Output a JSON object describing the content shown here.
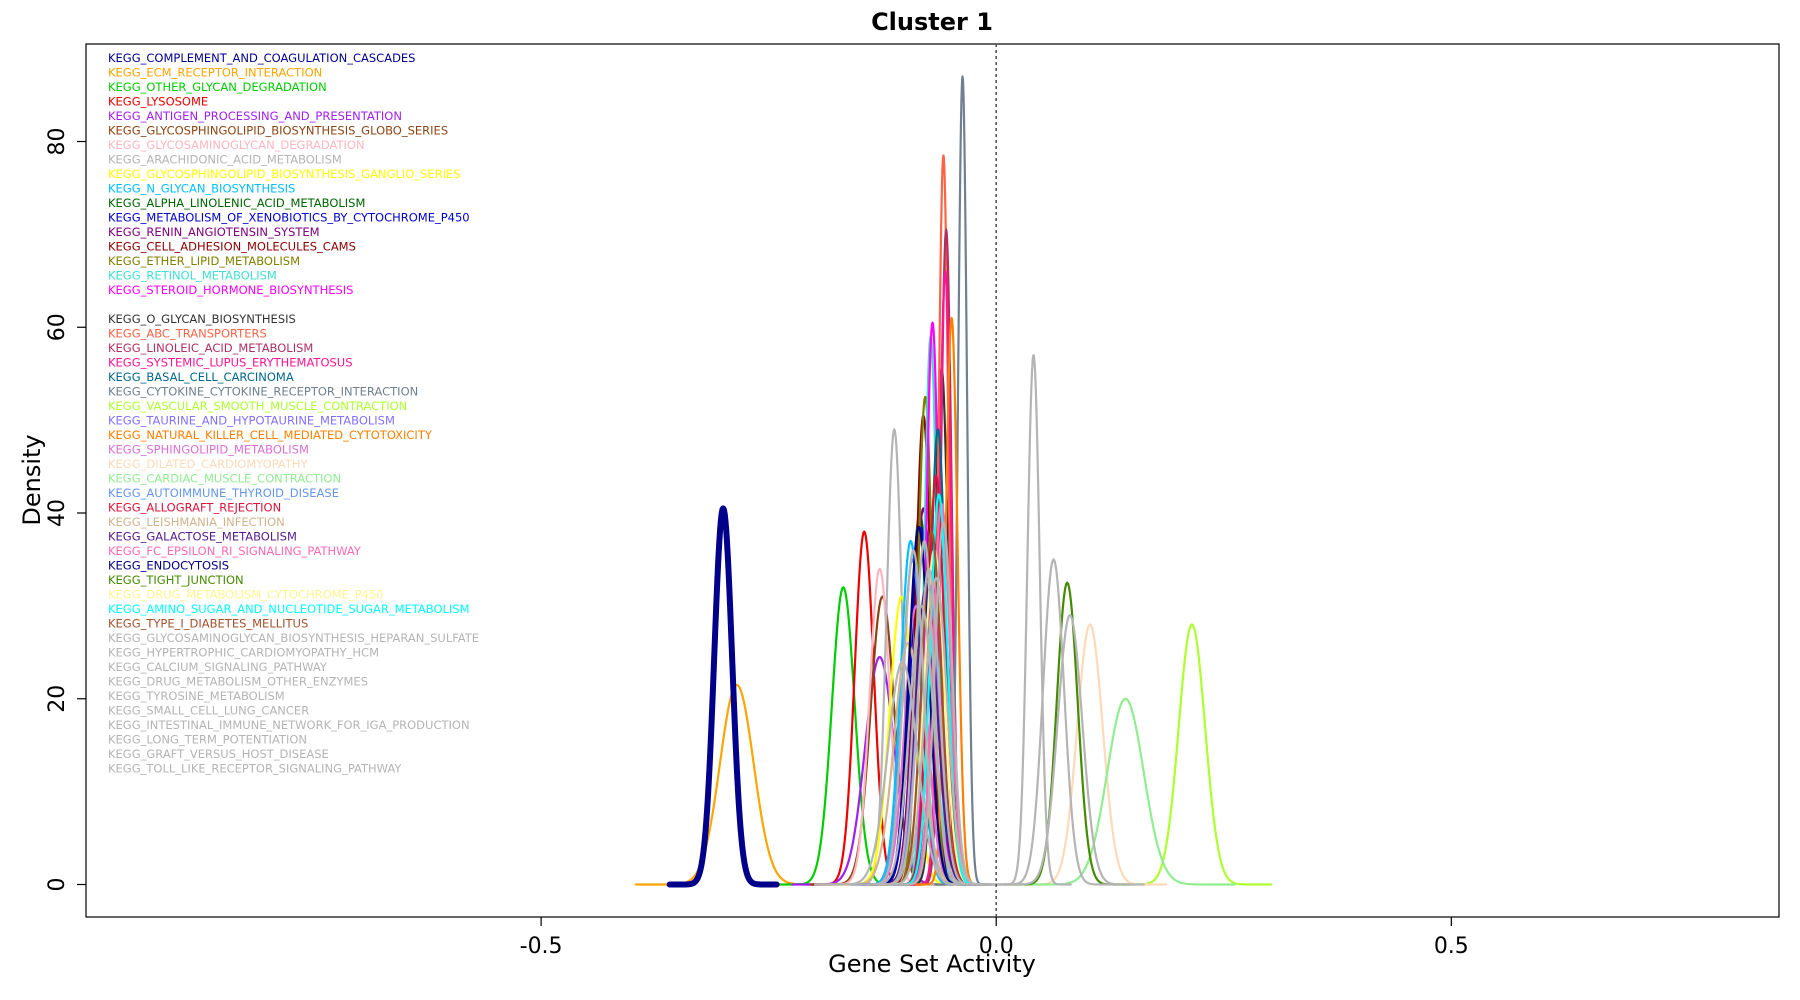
{
  "chart_data": {
    "type": "line",
    "title": "Cluster 1",
    "xlabel": "Gene Set Activity",
    "ylabel": "Density",
    "xlim": [
      -1.0,
      0.86
    ],
    "ylim": [
      -3.5,
      90.5
    ],
    "x_ticks": [
      -0.5,
      0.0,
      0.5
    ],
    "x_tick_labels": [
      "-0.5",
      "0.0",
      "0.5"
    ],
    "y_ticks": [
      0,
      20,
      40,
      60,
      80
    ],
    "y_tick_labels": [
      "0",
      "20",
      "40",
      "60",
      "80"
    ],
    "reference_line": {
      "x": 0.0,
      "style": "dotted",
      "color": "#555555"
    },
    "grid": false,
    "legend_placement": "top-left",
    "series": [
      {
        "name": "KEGG_COMPLEMENT_AND_COAGULATION_CASCADES",
        "color": "#00008b",
        "peak_x": -0.3,
        "peak_y": 40.5,
        "sd": 0.0098,
        "bold": true
      },
      {
        "name": "KEGG_ECM_RECEPTOR_INTERACTION",
        "color": "#ffa500",
        "peak_x": -0.285,
        "peak_y": 21.5,
        "sd": 0.0185
      },
      {
        "name": "KEGG_OTHER_GLYCAN_DEGRADATION",
        "color": "#00cd00",
        "peak_x": -0.168,
        "peak_y": 32,
        "sd": 0.0125
      },
      {
        "name": "KEGG_LYSOSOME",
        "color": "#ee0000",
        "peak_x": -0.145,
        "peak_y": 38,
        "sd": 0.0105
      },
      {
        "name": "KEGG_ANTIGEN_PROCESSING_AND_PRESENTATION",
        "color": "#a020f0",
        "peak_x": -0.128,
        "peak_y": 24.5,
        "sd": 0.016
      },
      {
        "name": "KEGG_GLYCOSPHINGOLIPID_BIOSYNTHESIS_GLOBO_SERIES",
        "color": "#8b4513",
        "peak_x": -0.125,
        "peak_y": 31,
        "sd": 0.013
      },
      {
        "name": "KEGG_GLYCOSAMINOGLYCAN_DEGRADATION",
        "color": "#ffb6c1",
        "peak_x": -0.128,
        "peak_y": 34,
        "sd": 0.011
      },
      {
        "name": "KEGG_ARACHIDONIC_ACID_METABOLISM",
        "color": "#b4b4b4",
        "peak_x": -0.112,
        "peak_y": 49,
        "sd": 0.0085
      },
      {
        "name": "KEGG_GLYCOSPHINGOLIPID_BIOSYNTHESIS_GANGLIO_SERIES",
        "color": "#ffff00",
        "peak_x": -0.104,
        "peak_y": 31,
        "sd": 0.013
      },
      {
        "name": "KEGG_N_GLYCAN_BIOSYNTHESIS",
        "color": "#00bfff",
        "peak_x": -0.094,
        "peak_y": 37,
        "sd": 0.011
      },
      {
        "name": "KEGG_ALPHA_LINOLENIC_ACID_METABOLISM",
        "color": "#006400",
        "peak_x": -0.084,
        "peak_y": 40,
        "sd": 0.0105
      },
      {
        "name": "KEGG_METABOLISM_OF_XENOBIOTICS_BY_CYTOCHROME_P450",
        "color": "#0000cd",
        "peak_x": -0.083,
        "peak_y": 38.5,
        "sd": 0.011
      },
      {
        "name": "KEGG_RENIN_ANGIOTENSIN_SYSTEM",
        "color": "#800080",
        "peak_x": -0.08,
        "peak_y": 40.5,
        "sd": 0.0105
      },
      {
        "name": "KEGG_CELL_ADHESION_MOLECULES_CAMS",
        "color": "#8b0000",
        "peak_x": -0.08,
        "peak_y": 50.5,
        "sd": 0.0085
      },
      {
        "name": "KEGG_ETHER_LIPID_METABOLISM",
        "color": "#808000",
        "peak_x": -0.078,
        "peak_y": 52.5,
        "sd": 0.008
      },
      {
        "name": "KEGG_RETINOL_METABOLISM",
        "color": "#40e0d0",
        "peak_x": -0.072,
        "peak_y": 59,
        "sd": 0.007
      },
      {
        "name": "KEGG_STEROID_HORMONE_BIOSYNTHESIS",
        "color": "#ff00ff",
        "peak_x": -0.07,
        "peak_y": 60.5,
        "sd": 0.007
      },
      {
        "name": "KEGG_O_GLYCAN_BIOSYNTHESIS",
        "color": "#333333",
        "peak_x": -0.06,
        "peak_y": 55.5,
        "sd": 0.0075
      },
      {
        "name": "KEGG_ABC_TRANSPORTERS",
        "color": "#ff6347",
        "peak_x": -0.058,
        "peak_y": 78.5,
        "sd": 0.0055
      },
      {
        "name": "KEGG_LINOLEIC_ACID_METABOLISM",
        "color": "#b03060",
        "peak_x": -0.055,
        "peak_y": 70.5,
        "sd": 0.006
      },
      {
        "name": "KEGG_SYSTEMIC_LUPUS_ERYTHEMATOSUS",
        "color": "#ff1493",
        "peak_x": -0.056,
        "peak_y": 66,
        "sd": 0.0065
      },
      {
        "name": "KEGG_BASAL_CELL_CARCINOMA",
        "color": "#00688b",
        "peak_x": -0.064,
        "peak_y": 49,
        "sd": 0.0085
      },
      {
        "name": "KEGG_CYTOKINE_CYTOKINE_RECEPTOR_INTERACTION",
        "color": "#708090",
        "peak_x": -0.037,
        "peak_y": 87,
        "sd": 0.005
      },
      {
        "name": "KEGG_VASCULAR_SMOOTH_MUSCLE_CONTRACTION",
        "color": "#adff2f",
        "peak_x": 0.215,
        "peak_y": 28,
        "sd": 0.0145
      },
      {
        "name": "KEGG_TAURINE_AND_HYPOTAURINE_METABOLISM",
        "color": "#8470ff",
        "peak_x": -0.075,
        "peak_y": 33,
        "sd": 0.012
      },
      {
        "name": "KEGG_NATURAL_KILLER_CELL_MEDIATED_CYTOTOXICITY",
        "color": "#ff7f00",
        "peak_x": -0.049,
        "peak_y": 61,
        "sd": 0.0065
      },
      {
        "name": "KEGG_SPHINGOLIPID_METABOLISM",
        "color": "#da70d6",
        "peak_x": -0.088,
        "peak_y": 30,
        "sd": 0.012
      },
      {
        "name": "KEGG_DILATED_CARDIOMYOPATHY",
        "color": "#ffdab9",
        "peak_x": 0.103,
        "peak_y": 28,
        "sd": 0.014
      },
      {
        "name": "KEGG_CARDIAC_MUSCLE_CONTRACTION",
        "color": "#90ee90",
        "peak_x": 0.142,
        "peak_y": 20,
        "sd": 0.02
      },
      {
        "name": "KEGG_AUTOIMMUNE_THYROID_DISEASE",
        "color": "#6495ed",
        "peak_x": -0.092,
        "peak_y": 35,
        "sd": 0.011
      },
      {
        "name": "KEGG_ALLOGRAFT_REJECTION",
        "color": "#dc143c",
        "peak_x": -0.066,
        "peak_y": 44,
        "sd": 0.009
      },
      {
        "name": "KEGG_LEISHMANIA_INFECTION",
        "color": "#d2b48c",
        "peak_x": -0.097,
        "peak_y": 26,
        "sd": 0.015
      },
      {
        "name": "KEGG_GALACTOSE_METABOLISM",
        "color": "#551a8b",
        "peak_x": -0.077,
        "peak_y": 32,
        "sd": 0.012
      },
      {
        "name": "KEGG_FC_EPSILON_RI_SIGNALING_PATHWAY",
        "color": "#ff69b4",
        "peak_x": -0.06,
        "peak_y": 41,
        "sd": 0.0095
      },
      {
        "name": "KEGG_ENDOCYTOSIS",
        "color": "#000080",
        "peak_x": -0.085,
        "peak_y": 38.5,
        "sd": 0.011
      },
      {
        "name": "KEGG_TIGHT_JUNCTION",
        "color": "#458b00",
        "peak_x": 0.078,
        "peak_y": 32.5,
        "sd": 0.0115
      },
      {
        "name": "KEGG_DRUG_METABOLISM_CYTOCHROME_P450",
        "color": "#fff68f",
        "peak_x": -0.068,
        "peak_y": 36,
        "sd": 0.011
      },
      {
        "name": "KEGG_AMINO_SUGAR_AND_NUCLEOTIDE_SUGAR_METABOLISM",
        "color": "#00ffff",
        "peak_x": -0.063,
        "peak_y": 42,
        "sd": 0.0095
      },
      {
        "name": "KEGG_TYPE_I_DIABETES_MELLITUS",
        "color": "#a0522d",
        "peak_x": -0.071,
        "peak_y": 38,
        "sd": 0.0105
      },
      {
        "name": "KEGG_GLYCOSAMINOGLYCAN_BIOSYNTHESIS_HEPARAN_SULFATE",
        "color": "#b4b4b4",
        "peak_x": 0.041,
        "peak_y": 57,
        "sd": 0.0068
      },
      {
        "name": "KEGG_HYPERTROPHIC_CARDIOMYOPATHY_HCM",
        "color": "#b4b4b4",
        "peak_x": 0.063,
        "peak_y": 35,
        "sd": 0.0115
      },
      {
        "name": "KEGG_CALCIUM_SIGNALING_PATHWAY",
        "color": "#b4b4b4",
        "peak_x": 0.081,
        "peak_y": 29,
        "sd": 0.0135
      },
      {
        "name": "KEGG_DRUG_METABOLISM_OTHER_ENZYMES",
        "color": "#b4b4b4",
        "peak_x": -0.103,
        "peak_y": 24,
        "sd": 0.016
      },
      {
        "name": "KEGG_TYROSINE_METABOLISM",
        "color": "#b4b4b4",
        "peak_x": -0.091,
        "peak_y": 36,
        "sd": 0.011
      },
      {
        "name": "KEGG_SMALL_CELL_LUNG_CANCER",
        "color": "#b4b4b4",
        "peak_x": -0.082,
        "peak_y": 30,
        "sd": 0.013
      },
      {
        "name": "KEGG_INTESTINAL_IMMUNE_NETWORK_FOR_IGA_PRODUCTION",
        "color": "#b4b4b4",
        "peak_x": -0.074,
        "peak_y": 34,
        "sd": 0.0115
      },
      {
        "name": "KEGG_LONG_TERM_POTENTIATION",
        "color": "#b4b4b4",
        "peak_x": -0.066,
        "peak_y": 33,
        "sd": 0.012
      },
      {
        "name": "KEGG_GRAFT_VERSUS_HOST_DISEASE",
        "color": "#b4b4b4",
        "peak_x": -0.079,
        "peak_y": 37,
        "sd": 0.0105
      },
      {
        "name": "KEGG_TOLL_LIKE_RECEPTOR_SIGNALING_PATHWAY",
        "color": "#b4b4b4",
        "peak_x": -0.058,
        "peak_y": 39,
        "sd": 0.0095
      }
    ]
  }
}
